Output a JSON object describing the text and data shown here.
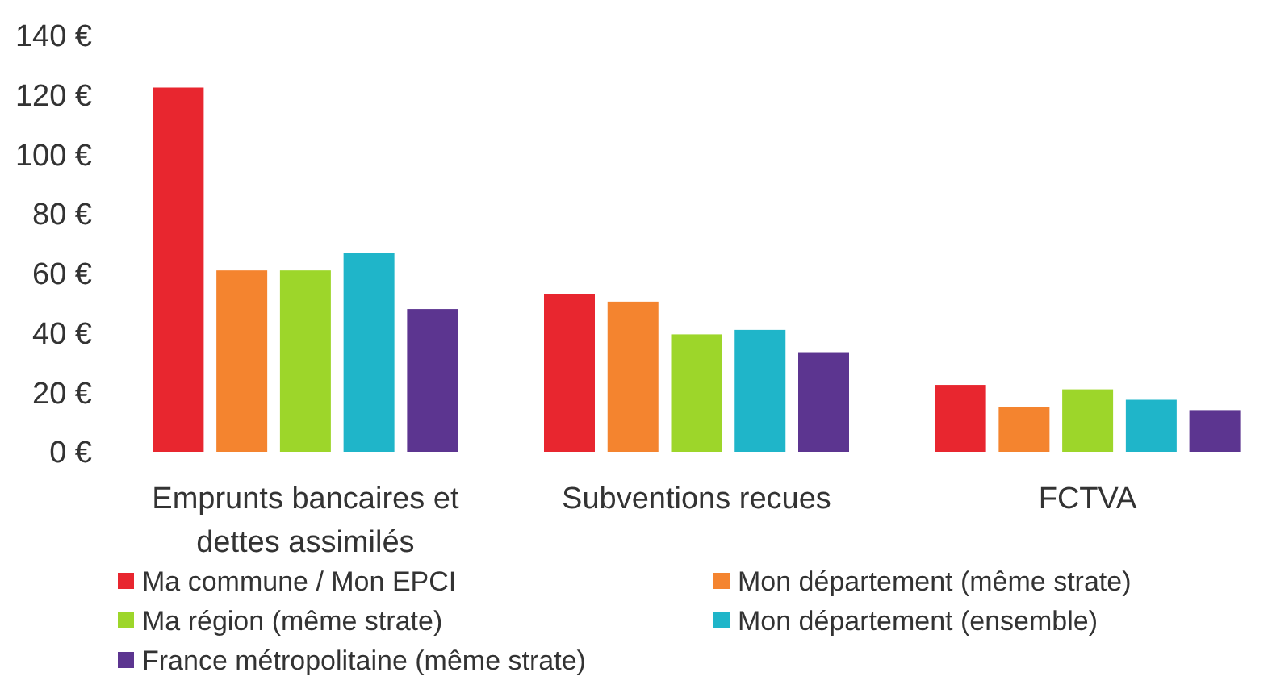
{
  "chart_data": {
    "type": "bar",
    "categories": [
      "Emprunts bancaires et dettes assimilés",
      "Subventions recues",
      "FCTVA"
    ],
    "series": [
      {
        "name": "Ma commune / Mon EPCI",
        "color": "#e8262f",
        "values": [
          122.5,
          53,
          22.5
        ]
      },
      {
        "name": "Mon département (même strate)",
        "color": "#f4842f",
        "values": [
          61,
          50.5,
          15
        ]
      },
      {
        "name": "Ma région (même strate)",
        "color": "#9dd62a",
        "values": [
          61,
          39.5,
          21
        ]
      },
      {
        "name": "Mon département (ensemble)",
        "color": "#1fb5c9",
        "values": [
          67,
          41,
          17.5
        ]
      },
      {
        "name": "France métropolitaine (même strate)",
        "color": "#5c3590",
        "values": [
          48,
          33.5,
          14
        ]
      }
    ],
    "ylim": [
      0,
      140
    ],
    "yticks": [
      {
        "value": 0,
        "label": "0 €"
      },
      {
        "value": 20,
        "label": "20 €"
      },
      {
        "value": 40,
        "label": "40 €"
      },
      {
        "value": 60,
        "label": "60 €"
      },
      {
        "value": 80,
        "label": "80 €"
      },
      {
        "value": 100,
        "label": "100 €"
      },
      {
        "value": 120,
        "label": "120 €"
      },
      {
        "value": 140,
        "label": "140 €"
      }
    ],
    "legend": "bottom"
  }
}
